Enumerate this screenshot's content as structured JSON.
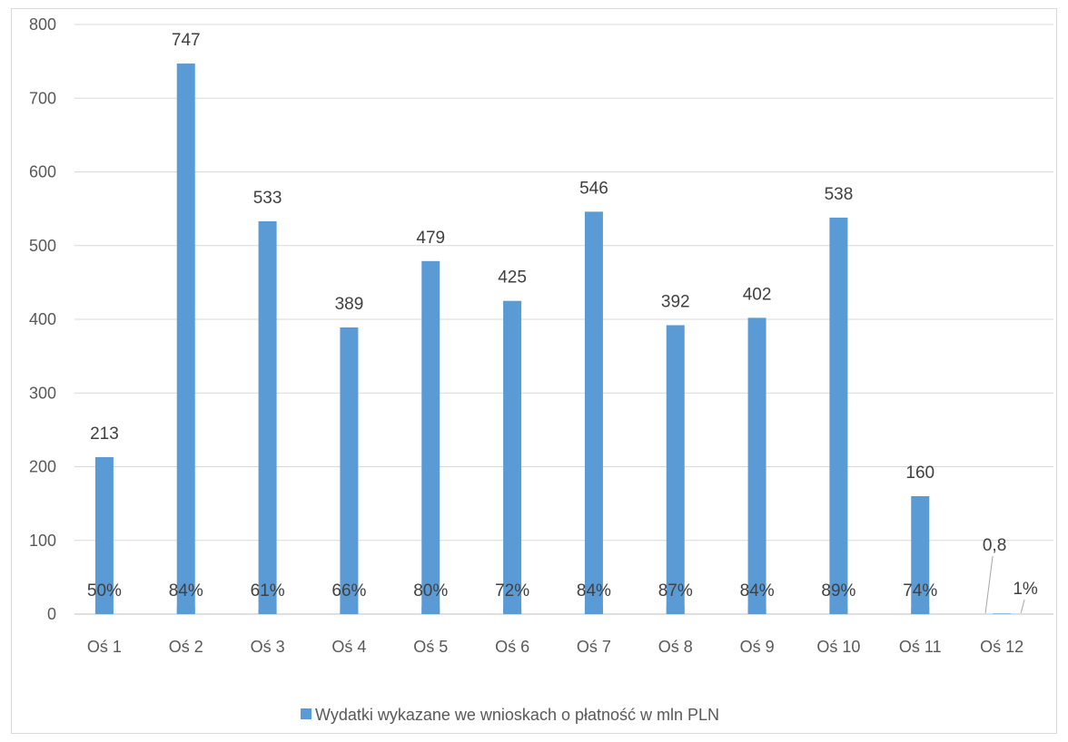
{
  "chart_data": {
    "type": "bar",
    "categories": [
      "Oś 1",
      "Oś 2",
      "Oś 3",
      "Oś 4",
      "Oś 5",
      "Oś 6",
      "Oś 7",
      "Oś 8",
      "Oś 9",
      "Oś 10",
      "Oś 11",
      "Oś 12"
    ],
    "series": [
      {
        "name": "Wydatki wykazane we wnioskach o płatność w mln PLN",
        "values": [
          213,
          747,
          533,
          389,
          479,
          425,
          546,
          392,
          402,
          538,
          160,
          0.8
        ],
        "labels": [
          "213",
          "747",
          "533",
          "389",
          "479",
          "425",
          "546",
          "392",
          "402",
          "538",
          "160",
          "0,8"
        ],
        "color": "#5b9bd5"
      },
      {
        "name": "",
        "values": [
          50,
          84,
          61,
          66,
          80,
          72,
          84,
          87,
          84,
          89,
          74,
          1
        ],
        "labels": [
          "50%",
          "84%",
          "61%",
          "66%",
          "80%",
          "72%",
          "84%",
          "87%",
          "84%",
          "89%",
          "74%",
          "1%"
        ],
        "color": "#5b9bd5"
      }
    ],
    "y_ticks": [
      "0",
      "100",
      "200",
      "300",
      "400",
      "500",
      "600",
      "700",
      "800"
    ],
    "ylim": [
      0,
      800
    ],
    "title": "",
    "xlabel": "",
    "ylabel": "",
    "grid": true,
    "legend_position": "bottom",
    "gridline_color": "#d9d9d9",
    "axis_color": "#bfbfbf"
  }
}
